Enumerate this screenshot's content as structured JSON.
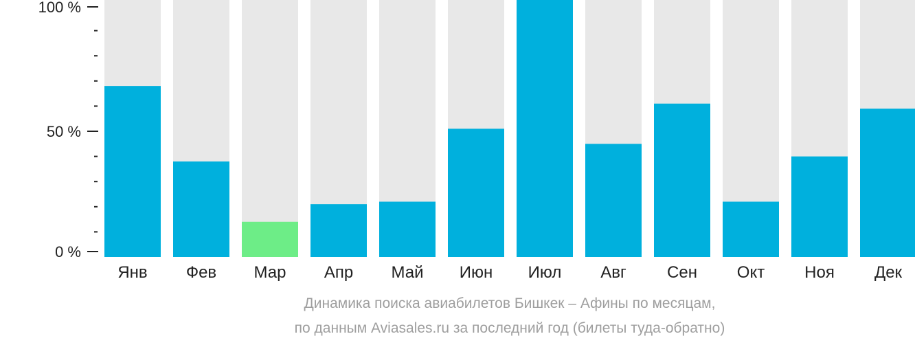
{
  "chart_data": {
    "type": "bar",
    "categories": [
      "Янв",
      "Фев",
      "Мар",
      "Апр",
      "Май",
      "Июн",
      "Июл",
      "Авг",
      "Сен",
      "Окт",
      "Ноя",
      "Дек"
    ],
    "values": [
      68,
      38,
      14,
      21,
      22,
      51,
      100,
      45,
      61,
      22,
      40,
      59
    ],
    "highlight_index": 2,
    "ylim": [
      0,
      100
    ],
    "yticks": [
      {
        "value": 0,
        "label": "0 %"
      },
      {
        "value": 50,
        "label": "50 %"
      },
      {
        "value": 100,
        "label": "100 %"
      }
    ],
    "minor_tick_step": 10,
    "colors": {
      "bar": "#00b0dd",
      "highlight": "#6ded87",
      "background_bar": "#e8e8e8",
      "axis": "#222222",
      "tick_label": "#222222",
      "caption": "#9e9e9e"
    },
    "caption_line1": "Динамика поиска авиабилетов Бишкек – Афины по месяцам,",
    "caption_line2": "по данным Aviasales.ru за последний год (билеты туда-обратно)"
  }
}
